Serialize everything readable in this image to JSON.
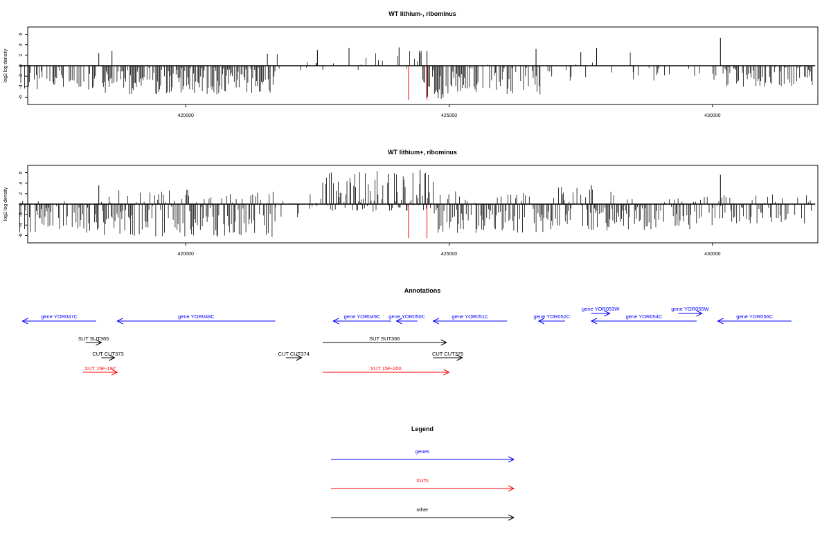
{
  "chart_data": [
    {
      "type": "bar",
      "title": "WT lithium-, ribominus",
      "ylabel": "log2 log density",
      "xlabel": "",
      "xlim": [
        417000,
        432000
      ],
      "ylim": [
        -7,
        7
      ],
      "yticks": [
        -6,
        -4,
        -2,
        0,
        2,
        4,
        6
      ],
      "xticks": [
        420000,
        425000,
        430000
      ],
      "x_tick_labels": [
        "420000",
        "425000",
        "430000"
      ],
      "baseline": {
        "start": 416850,
        "end": 431950
      },
      "marker_lines": {
        "color": "#ff0000",
        "x": [
          424230,
          424580
        ],
        "y": [
          -6.5,
          0
        ]
      },
      "regions": [
        {
          "start": 416850,
          "end": 418400,
          "min": -4.8,
          "max": 0,
          "density": 0.45
        },
        {
          "start": 418400,
          "end": 421700,
          "min": -5.5,
          "max": 0,
          "density": 0.8
        },
        {
          "start": 421700,
          "end": 423200,
          "min": -1.5,
          "max": 3,
          "density": 0.08
        },
        {
          "start": 423200,
          "end": 424500,
          "min": -0.8,
          "max": 3.2,
          "density": 0.25
        },
        {
          "start": 424500,
          "end": 425400,
          "min": -6.5,
          "max": 0,
          "density": 0.8
        },
        {
          "start": 425400,
          "end": 426800,
          "min": -5.5,
          "max": 0.5,
          "density": 0.55
        },
        {
          "start": 426800,
          "end": 428500,
          "min": -3,
          "max": 3,
          "density": 0.15
        },
        {
          "start": 428500,
          "end": 430200,
          "min": -3,
          "max": 0,
          "density": 0.18
        },
        {
          "start": 430200,
          "end": 431900,
          "min": -4.2,
          "max": 0,
          "density": 0.6
        }
      ],
      "peaks": [
        {
          "x": 418350,
          "y": 2.4
        },
        {
          "x": 418600,
          "y": 2.8
        },
        {
          "x": 421550,
          "y": 2.3
        },
        {
          "x": 422500,
          "y": 3.0
        },
        {
          "x": 423100,
          "y": 3.4
        },
        {
          "x": 424050,
          "y": 3.5
        },
        {
          "x": 424580,
          "y": 2.8
        },
        {
          "x": 426650,
          "y": 3.2
        },
        {
          "x": 427500,
          "y": 2.6
        },
        {
          "x": 427800,
          "y": 3.4
        },
        {
          "x": 430150,
          "y": 5.3
        }
      ]
    },
    {
      "type": "bar",
      "title": "WT lithium+, ribominus",
      "ylabel": "log2 log density",
      "xlabel": "",
      "xlim": [
        417000,
        432000
      ],
      "ylim": [
        -7,
        7
      ],
      "yticks": [
        -6,
        -4,
        -2,
        0,
        2,
        4,
        6
      ],
      "xticks": [
        420000,
        425000,
        430000
      ],
      "x_tick_labels": [
        "420000",
        "425000",
        "430000"
      ],
      "baseline": {
        "start": 416850,
        "end": 431950
      },
      "marker_lines": {
        "color": "#ff0000",
        "x": [
          424230,
          424580
        ],
        "y": [
          -6.5,
          0
        ]
      },
      "regions": [
        {
          "start": 416850,
          "end": 418400,
          "min": -5.5,
          "max": 1,
          "density": 0.7
        },
        {
          "start": 418400,
          "end": 421700,
          "min": -6.3,
          "max": 3,
          "density": 0.85
        },
        {
          "start": 421700,
          "end": 422600,
          "min": -2.8,
          "max": 2.2,
          "density": 0.35
        },
        {
          "start": 422600,
          "end": 424700,
          "min": -1.5,
          "max": 6.3,
          "density": 0.8
        },
        {
          "start": 424700,
          "end": 426800,
          "min": -5.5,
          "max": 2.5,
          "density": 0.85
        },
        {
          "start": 426800,
          "end": 428500,
          "min": -5,
          "max": 3.5,
          "density": 0.75
        },
        {
          "start": 428500,
          "end": 430200,
          "min": -5,
          "max": 1.5,
          "density": 0.65
        },
        {
          "start": 430200,
          "end": 431900,
          "min": -4,
          "max": 2,
          "density": 0.5
        }
      ],
      "peaks": [
        {
          "x": 418350,
          "y": 3.6
        },
        {
          "x": 424450,
          "y": 6.5
        },
        {
          "x": 423850,
          "y": 5.8
        },
        {
          "x": 427700,
          "y": 3.6
        },
        {
          "x": 430150,
          "y": 5.6
        }
      ]
    }
  ],
  "annotations": {
    "title": "Annotations",
    "genes": [
      {
        "label": "gene YOR047C",
        "start": 418300,
        "end": 416900,
        "row": "main"
      },
      {
        "label": "gene YOR048C",
        "start": 421700,
        "end": 418700,
        "row": "main"
      },
      {
        "label": "gene YOR049C",
        "start": 423900,
        "end": 422800,
        "row": "main"
      },
      {
        "label": "gene YOR050C",
        "start": 424400,
        "end": 424000,
        "row": "main"
      },
      {
        "label": "gene YOR051C",
        "start": 426100,
        "end": 424700,
        "row": "main"
      },
      {
        "label": "gene YOR052C",
        "start": 427200,
        "end": 426700,
        "row": "main"
      },
      {
        "label": "gene YOR053W",
        "start": 427700,
        "end": 428050,
        "row": "upper"
      },
      {
        "label": "gene YOR054C",
        "start": 429700,
        "end": 427700,
        "row": "main"
      },
      {
        "label": "gene YOR055W",
        "start": 429350,
        "end": 429800,
        "row": "upper"
      },
      {
        "label": "gene YOR056C",
        "start": 431500,
        "end": 430100,
        "row": "main"
      }
    ],
    "others": [
      {
        "label": "SUT SUT365",
        "start": 418100,
        "end": 418400,
        "row": 1
      },
      {
        "label": "SUT SUT366",
        "start": 422600,
        "end": 424950,
        "row": 1
      },
      {
        "label": "CUT CUT373",
        "start": 418400,
        "end": 418650,
        "row": 2
      },
      {
        "label": "CUT CUT374",
        "start": 421900,
        "end": 422200,
        "row": 2
      },
      {
        "label": "CUT CUT375",
        "start": 424700,
        "end": 425250,
        "row": 2
      }
    ],
    "xuts": [
      {
        "label": "XUT 15F-197",
        "start": 418050,
        "end": 418700
      },
      {
        "label": "XUT 15F-200",
        "start": 422600,
        "end": 425000
      }
    ]
  },
  "legend": {
    "title": "Legend",
    "items": [
      {
        "label": "genes",
        "color": "#0000ff"
      },
      {
        "label": "XUTs",
        "color": "#ff0000"
      },
      {
        "label": "other",
        "color": "#000000"
      }
    ]
  }
}
